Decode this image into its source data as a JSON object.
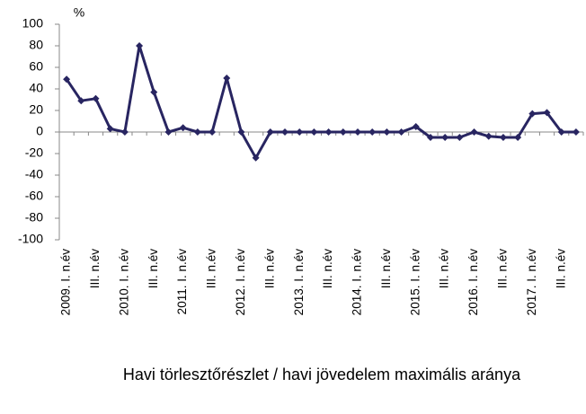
{
  "chart_data": {
    "type": "line",
    "y_label": "%",
    "x_label": "Havi törlesztőrészlet / havi jövedelem maximális aránya",
    "categories": [
      "2009. I. n.év",
      null,
      "III. n.év",
      null,
      "2010. I. n.év",
      null,
      "III. n.év",
      null,
      "2011. I. n.év",
      null,
      "III. n.év",
      null,
      "2012. I. n.év",
      null,
      "III. n.év",
      null,
      "2013. I. n.év",
      null,
      "III. n.év",
      null,
      "2014. I. n.év",
      null,
      "III. n.év",
      null,
      "2015. I. n.év",
      null,
      "III. n.év",
      null,
      "2016. I. n.év",
      null,
      "III. n.év",
      null,
      "2017. I. n.év",
      null,
      "III. n.év",
      null
    ],
    "series": [
      {
        "color": "#282561",
        "values": [
          49,
          29,
          31,
          3,
          0,
          80,
          37,
          0,
          4,
          0,
          0,
          50,
          0,
          -24,
          0,
          0,
          0,
          0,
          0,
          0,
          0,
          0,
          0,
          0,
          5,
          -5,
          -5,
          -5,
          0,
          -4,
          -5,
          -5,
          17,
          18,
          0,
          0
        ]
      }
    ],
    "ylim": [
      -100,
      100
    ],
    "yticks": [
      -100,
      -80,
      -60,
      -40,
      -20,
      0,
      20,
      40,
      60,
      80,
      100
    ],
    "grid": false
  }
}
